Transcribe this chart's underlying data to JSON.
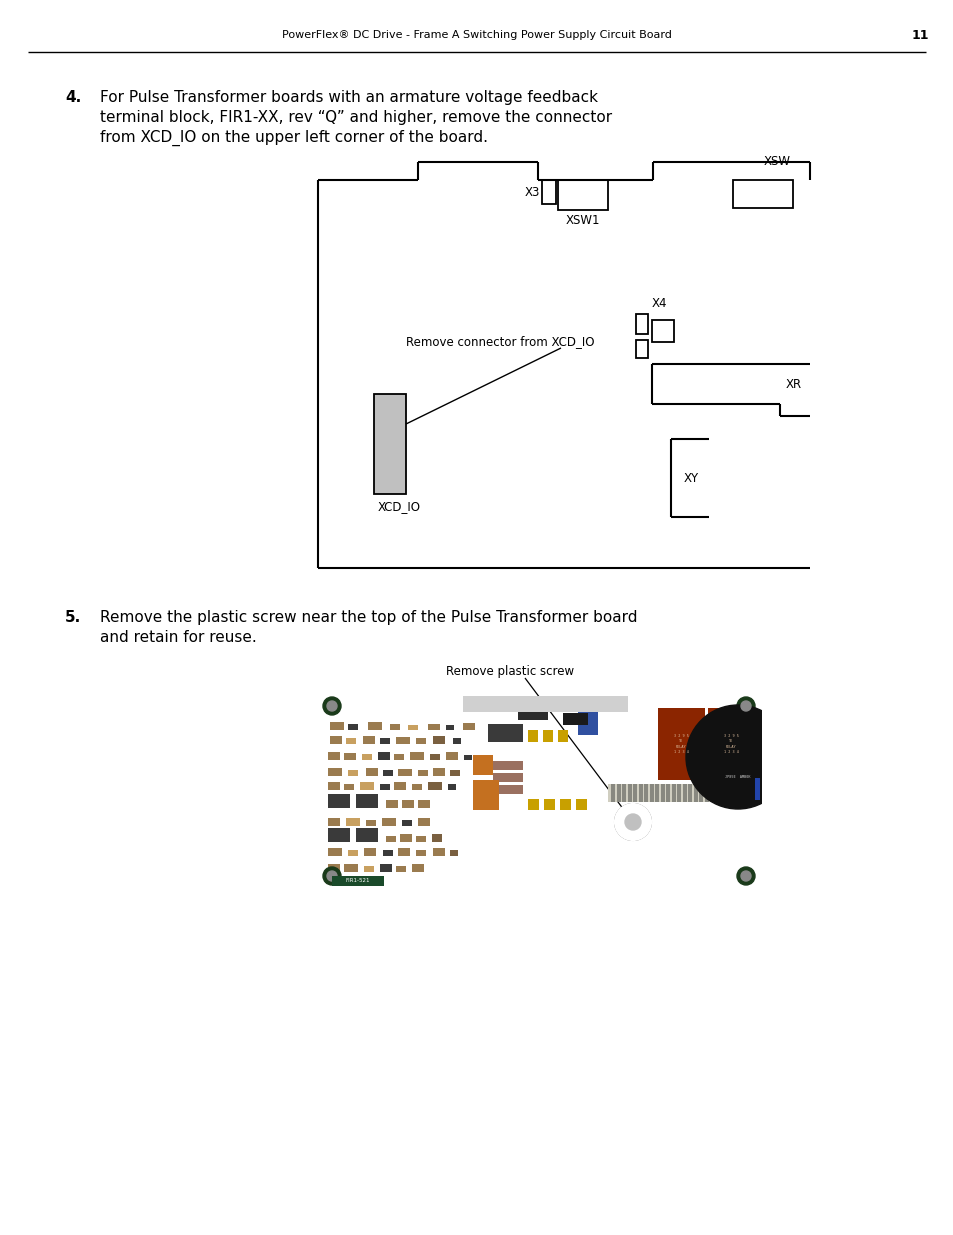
{
  "page_title": "PowerFlex® DC Drive - Frame A Switching Power Supply Circuit Board",
  "page_number": "11",
  "background_color": "#ffffff",
  "step4_number": "4.",
  "step4_text_line1": "For Pulse Transformer boards with an armature voltage feedback",
  "step4_text_line2": "terminal block, FIR1-XX, rev “Q” and higher, remove the connector",
  "step4_text_line3": "from XCD_IO on the upper left corner of the board.",
  "step5_number": "5.",
  "step5_text_line1": "Remove the plastic screw near the top of the Pulse Transformer board",
  "step5_text_line2": "and retain for reuse.",
  "diagram_annotation": "Remove connector from XCD_IO",
  "diagram_xsw_label": "XSW",
  "diagram_xsw1_label": "XSW1",
  "diagram_x3_label": "X3",
  "diagram_x4_label": "X4",
  "diagram_xr_label": "XR",
  "diagram_xy_label": "XY",
  "diagram_xcd_io_label": "XCD_IO",
  "photo_annotation": "Remove plastic screw"
}
